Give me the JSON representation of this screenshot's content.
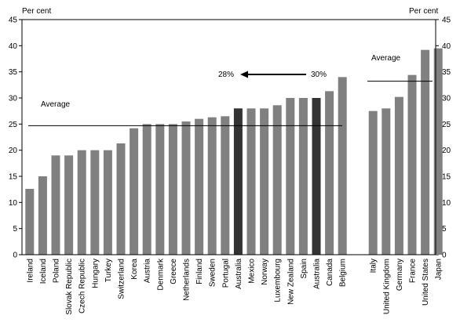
{
  "chart_data": {
    "type": "bar",
    "title": "",
    "ylabel_left": "Per cent",
    "ylabel_right": "Per cent",
    "ylim": [
      0,
      45
    ],
    "yticks": [
      0,
      5,
      10,
      15,
      20,
      25,
      30,
      35,
      40,
      45
    ],
    "grid": false,
    "groups": [
      {
        "categories": [
          "Ireland",
          "Iceland",
          "Poland",
          "Slovak Republic",
          "Czech Republic",
          "Hungary",
          "Turkey",
          "Switzerland",
          "Korea",
          "Austria",
          "Denmark",
          "Greece",
          "Netherlands",
          "Finland",
          "Sweden",
          "Portugal",
          "Australia",
          "Mexico",
          "Norway",
          "Luxembourg",
          "New Zealand",
          "Spain",
          "Australia",
          "Canada",
          "Belgium"
        ],
        "values": [
          12.6,
          15.0,
          19.0,
          19.0,
          20.0,
          20.0,
          20.0,
          21.3,
          24.2,
          25.0,
          25.0,
          25.0,
          25.5,
          26.0,
          26.3,
          26.5,
          28.0,
          28.0,
          28.0,
          28.6,
          30.0,
          30.0,
          30.0,
          31.3,
          34.0
        ],
        "highlight": [
          16,
          22
        ],
        "average": 24.7,
        "average_label": "Average"
      },
      {
        "categories": [
          "Italy",
          "United Kingdom",
          "Germany",
          "France",
          "United States",
          "Japan"
        ],
        "values": [
          27.5,
          28.0,
          30.2,
          34.4,
          39.2,
          39.5
        ],
        "highlight": [],
        "average": 33.2,
        "average_label": "Average"
      }
    ],
    "annotation": {
      "from_label": "30%",
      "to_label": "28%"
    },
    "colors": {
      "bar": "#808080",
      "highlight": "#333333",
      "line": "#000000"
    }
  }
}
